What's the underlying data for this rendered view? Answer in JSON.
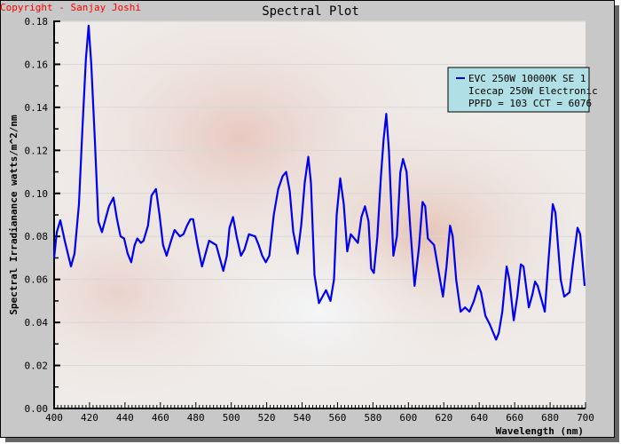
{
  "copyright": "Copyright - Sanjay Joshi",
  "colors": {
    "frame": "#c8c8c8",
    "shadow": "#666666",
    "plot_bg": "#efebe8",
    "line": "#0000ee",
    "legend_bg": "#b0e0e6",
    "copyright": "#ff0000",
    "grid": "#dcdcdc"
  },
  "chart_data": {
    "type": "line",
    "title": "Spectral Plot",
    "xlabel": "Wavelength (nm)",
    "ylabel": "Spectral Irradianance watts/m^2/nm",
    "xlim": [
      400,
      700
    ],
    "ylim": [
      0,
      0.18
    ],
    "x_ticks": [
      "400",
      "420",
      "440",
      "460",
      "480",
      "500",
      "520",
      "540",
      "560",
      "580",
      "600",
      "620",
      "640",
      "660",
      "680",
      "700"
    ],
    "y_ticks": [
      "0.00",
      "0.02",
      "0.04",
      "0.06",
      "0.08",
      "0.10",
      "0.12",
      "0.14",
      "0.16",
      "0.18"
    ],
    "grid": "horizontal",
    "legend_position": "top-right",
    "legend": [
      "EVC 250W 10000K SE 1",
      "Icecap 250W Electronic",
      "PPFD = 103  CCT = 6076"
    ],
    "series": [
      {
        "name": "EVC 250W 10000K SE 1",
        "color": "#0000ee",
        "points": [
          [
            400,
            0.07
          ],
          [
            401.5,
            0.082
          ],
          [
            403.5,
            0.0875
          ],
          [
            406,
            0.078
          ],
          [
            409.5,
            0.066
          ],
          [
            411.5,
            0.072
          ],
          [
            414,
            0.095
          ],
          [
            416,
            0.13
          ],
          [
            418,
            0.163
          ],
          [
            419.5,
            0.178
          ],
          [
            421,
            0.16
          ],
          [
            423,
            0.125
          ],
          [
            425,
            0.087
          ],
          [
            427,
            0.082
          ],
          [
            429,
            0.088
          ],
          [
            431,
            0.094
          ],
          [
            433.5,
            0.098
          ],
          [
            435.5,
            0.088
          ],
          [
            437.5,
            0.08
          ],
          [
            439.5,
            0.079
          ],
          [
            441.5,
            0.072
          ],
          [
            443.5,
            0.068
          ],
          [
            445.5,
            0.076
          ],
          [
            447,
            0.079
          ],
          [
            449,
            0.077
          ],
          [
            450.5,
            0.078
          ],
          [
            453,
            0.085
          ],
          [
            455,
            0.099
          ],
          [
            457.5,
            0.102
          ],
          [
            459.5,
            0.09
          ],
          [
            461.5,
            0.076
          ],
          [
            463.5,
            0.071
          ],
          [
            466,
            0.078
          ],
          [
            468,
            0.083
          ],
          [
            470,
            0.081
          ],
          [
            471,
            0.08
          ],
          [
            473,
            0.081
          ],
          [
            475,
            0.085
          ],
          [
            477,
            0.088
          ],
          [
            478.5,
            0.088
          ],
          [
            481,
            0.076
          ],
          [
            483.5,
            0.066
          ],
          [
            485.5,
            0.072
          ],
          [
            487.5,
            0.078
          ],
          [
            489.5,
            0.077
          ],
          [
            491.5,
            0.076
          ],
          [
            493.5,
            0.07
          ],
          [
            495.5,
            0.064
          ],
          [
            497.5,
            0.071
          ],
          [
            499,
            0.084
          ],
          [
            501,
            0.089
          ],
          [
            503,
            0.08
          ],
          [
            505.5,
            0.071
          ],
          [
            507.5,
            0.074
          ],
          [
            510,
            0.081
          ],
          [
            513.5,
            0.08
          ],
          [
            515.5,
            0.076
          ],
          [
            517.5,
            0.071
          ],
          [
            519.5,
            0.068
          ],
          [
            521.5,
            0.071
          ],
          [
            524,
            0.09
          ],
          [
            526.5,
            0.102
          ],
          [
            529,
            0.108
          ],
          [
            531,
            0.11
          ],
          [
            533,
            0.101
          ],
          [
            535,
            0.082
          ],
          [
            537.5,
            0.072
          ],
          [
            539.5,
            0.085
          ],
          [
            541.5,
            0.105
          ],
          [
            543.5,
            0.117
          ],
          [
            545,
            0.105
          ],
          [
            547,
            0.062
          ],
          [
            549.5,
            0.049
          ],
          [
            551.5,
            0.052
          ],
          [
            553.5,
            0.055
          ],
          [
            556,
            0.05
          ],
          [
            558,
            0.06
          ],
          [
            559.5,
            0.09
          ],
          [
            561.5,
            0.107
          ],
          [
            563.5,
            0.095
          ],
          [
            565.5,
            0.073
          ],
          [
            567.5,
            0.081
          ],
          [
            569.5,
            0.079
          ],
          [
            571.5,
            0.077
          ],
          [
            573.5,
            0.089
          ],
          [
            575.5,
            0.094
          ],
          [
            577.5,
            0.087
          ],
          [
            579,
            0.065
          ],
          [
            580.5,
            0.063
          ],
          [
            582.5,
            0.08
          ],
          [
            584.5,
            0.108
          ],
          [
            586,
            0.125
          ],
          [
            587.5,
            0.137
          ],
          [
            589,
            0.12
          ],
          [
            591.5,
            0.071
          ],
          [
            593.5,
            0.08
          ],
          [
            595.5,
            0.11
          ],
          [
            597,
            0.116
          ],
          [
            599,
            0.11
          ],
          [
            601,
            0.085
          ],
          [
            603.5,
            0.057
          ],
          [
            606,
            0.075
          ],
          [
            608,
            0.096
          ],
          [
            609.5,
            0.094
          ],
          [
            611,
            0.079
          ],
          [
            614.5,
            0.076
          ],
          [
            617,
            0.064
          ],
          [
            619.5,
            0.052
          ],
          [
            621.5,
            0.066
          ],
          [
            623.5,
            0.085
          ],
          [
            625,
            0.08
          ],
          [
            627,
            0.06
          ],
          [
            629.5,
            0.045
          ],
          [
            632,
            0.047
          ],
          [
            634.5,
            0.045
          ],
          [
            637,
            0.05
          ],
          [
            639.5,
            0.057
          ],
          [
            641,
            0.054
          ],
          [
            643.5,
            0.043
          ],
          [
            646,
            0.039
          ],
          [
            649.5,
            0.032
          ],
          [
            651,
            0.035
          ],
          [
            653,
            0.045
          ],
          [
            655.5,
            0.066
          ],
          [
            657,
            0.06
          ],
          [
            659.5,
            0.041
          ],
          [
            661.5,
            0.052
          ],
          [
            663.5,
            0.067
          ],
          [
            665,
            0.066
          ],
          [
            668,
            0.047
          ],
          [
            670,
            0.053
          ],
          [
            671.5,
            0.059
          ],
          [
            673,
            0.057
          ],
          [
            677,
            0.045
          ],
          [
            679,
            0.068
          ],
          [
            681.5,
            0.095
          ],
          [
            683,
            0.091
          ],
          [
            686,
            0.06
          ],
          [
            688,
            0.052
          ],
          [
            691,
            0.054
          ],
          [
            693,
            0.068
          ],
          [
            695.5,
            0.084
          ],
          [
            697,
            0.081
          ],
          [
            699.5,
            0.057
          ]
        ]
      }
    ]
  }
}
